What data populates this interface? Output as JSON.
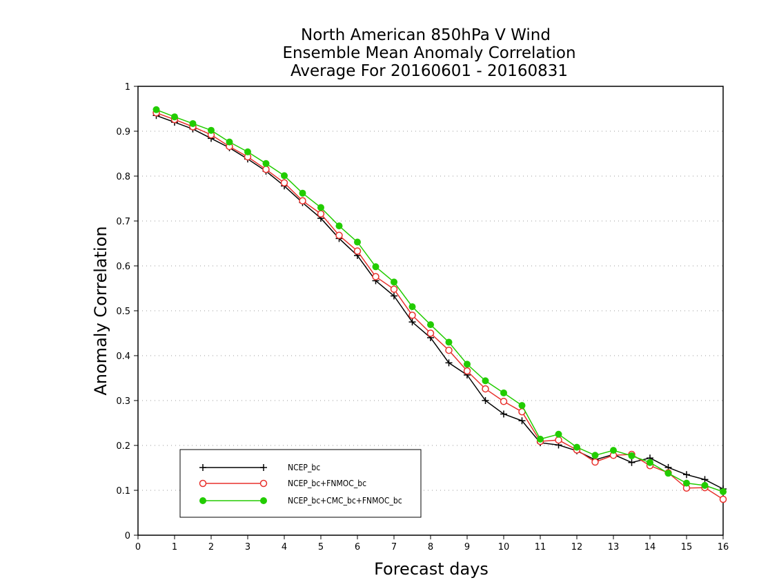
{
  "chart_data": {
    "type": "line",
    "title_lines": [
      "North American 850hPa V Wind",
      "Ensemble Mean Anomaly Correlation",
      "Average For 20160601 - 20160831"
    ],
    "xlabel": "Forecast days",
    "ylabel": "Anomaly Correlation",
    "xlim": [
      0,
      16
    ],
    "ylim": [
      0,
      1
    ],
    "x_ticks": [
      "0",
      "1",
      "2",
      "3",
      "4",
      "5",
      "6",
      "7",
      "8",
      "9",
      "10",
      "11",
      "12",
      "13",
      "14",
      "15",
      "16"
    ],
    "y_ticks": [
      "0",
      "0.1",
      "0.2",
      "0.3",
      "0.4",
      "0.5",
      "0.6",
      "0.7",
      "0.8",
      "0.9",
      "1"
    ],
    "grid": "horizontal dotted",
    "legend_position": "bottom-left",
    "x": [
      0.5,
      1,
      1.5,
      2,
      2.5,
      3,
      3.5,
      4,
      4.5,
      5,
      5.5,
      6,
      6.5,
      7,
      7.5,
      8,
      8.5,
      9,
      9.5,
      10,
      10.5,
      11,
      11.5,
      12,
      12.5,
      13,
      13.5,
      14,
      14.5,
      15,
      15.5,
      16
    ],
    "series": [
      {
        "name": "NCEP_bc",
        "color": "#000000",
        "marker": "plus",
        "values": [
          0.935,
          0.92,
          0.905,
          0.884,
          0.863,
          0.838,
          0.811,
          0.778,
          0.741,
          0.706,
          0.661,
          0.623,
          0.567,
          0.533,
          0.475,
          0.44,
          0.384,
          0.357,
          0.3,
          0.27,
          0.255,
          0.206,
          0.201,
          0.188,
          0.168,
          0.18,
          0.162,
          0.172,
          0.151,
          0.135,
          0.124,
          0.103
        ]
      },
      {
        "name": "NCEP_bc+FNMOC_bc",
        "color": "#e8302c",
        "marker": "open-circle",
        "values": [
          0.941,
          0.926,
          0.91,
          0.892,
          0.866,
          0.843,
          0.815,
          0.785,
          0.745,
          0.716,
          0.668,
          0.633,
          0.576,
          0.548,
          0.49,
          0.45,
          0.412,
          0.366,
          0.326,
          0.298,
          0.275,
          0.209,
          0.212,
          0.19,
          0.163,
          0.178,
          0.18,
          0.155,
          0.139,
          0.105,
          0.106,
          0.08
        ]
      },
      {
        "name": "NCEP_bc+CMC_bc+FNMOC_bc",
        "color": "#22cc00",
        "marker": "filled-circle",
        "values": [
          0.948,
          0.932,
          0.917,
          0.902,
          0.876,
          0.854,
          0.828,
          0.801,
          0.762,
          0.73,
          0.689,
          0.653,
          0.598,
          0.564,
          0.509,
          0.469,
          0.43,
          0.381,
          0.344,
          0.317,
          0.289,
          0.214,
          0.225,
          0.196,
          0.178,
          0.189,
          0.177,
          0.162,
          0.138,
          0.116,
          0.111,
          0.097
        ]
      }
    ]
  }
}
